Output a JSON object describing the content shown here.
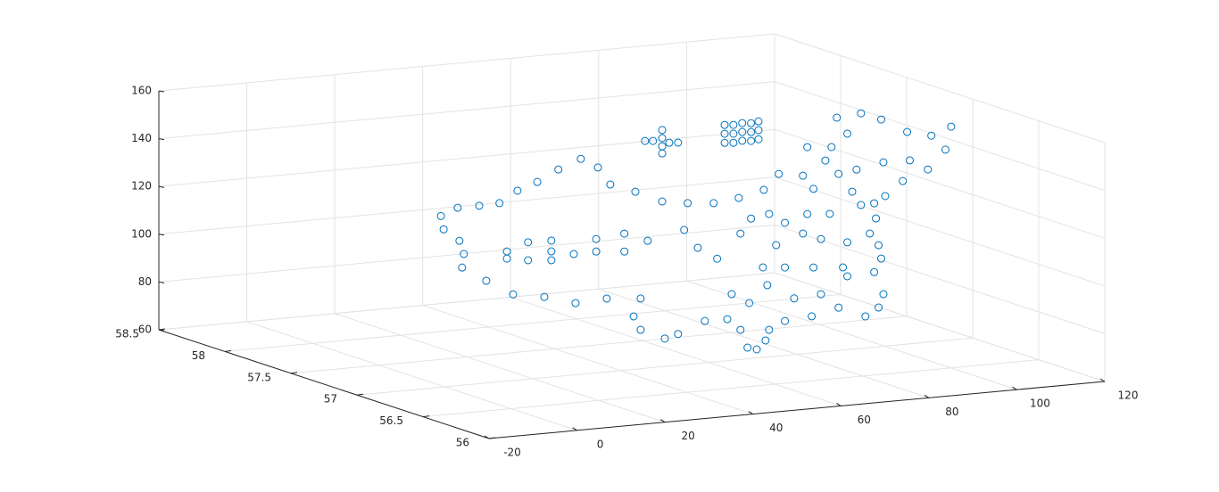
{
  "chart_data": {
    "type": "scatter3d",
    "color": "#0072bd",
    "grid": true,
    "xlim": [
      -20,
      120
    ],
    "ylim": [
      56,
      58.5
    ],
    "zlim": [
      60,
      160
    ],
    "xticks": [
      -20,
      0,
      20,
      40,
      60,
      80,
      100,
      120
    ],
    "yticks": [
      56,
      56.5,
      57,
      57.5,
      58,
      58.5
    ],
    "zticks": [
      60,
      80,
      100,
      120,
      140,
      160
    ],
    "series": [
      {
        "x": [
          -0.9,
          2.9,
          7.8,
          12.4,
          16.5,
          21.0,
          25.8,
          30.9,
          34.8,
          37.6,
          43.3,
          49.4,
          55.2,
          61.1,
          66.8,
          72.5,
          75.9,
          81.4,
          86.5,
          87.9,
          89.1,
          94.6,
          99.2,
          105.1,
          110.6,
          115.1,
          113.8,
          109.8,
          104.1,
          100.1,
          97.6,
          98.0,
          96.6,
          98.6,
          99.2,
          97.6,
          99.7,
          98.6,
          95.6,
          89.5,
          83.4,
          77.3,
          73.7,
          72.9,
          70.9,
          68.8,
          67.2,
          64.2,
          59.1,
          53.0,
          50.0,
          44.5,
          42.9,
          44.5,
          36.8,
          29.7,
          22.6,
          15.5,
          9.4,
          3.9,
          4.3,
          3.3,
          -0.3,
          14.1,
          14.1,
          18.9,
          18.9,
          24.2,
          24.2,
          24.2,
          29.3,
          34.4,
          34.4,
          40.8,
          40.8,
          46.1,
          54.4,
          57.5,
          61.9,
          67.2,
          69.6,
          72.3,
          75.3,
          81.4,
          85.5,
          91.5,
          90.5,
          83.8,
          77.3,
          73.3,
          65.2,
          69.2,
          79.4,
          85.5,
          91.5,
          87.5,
          92.6,
          94.6,
          82.4,
          77.3,
          73.7,
          83.8,
          89.5,
          93.6,
          99.7,
          105.7,
          91.5,
          82.4,
          45.5,
          47.3,
          49.4,
          49.4,
          49.4,
          49.4,
          51.0,
          53.0,
          63.6,
          63.6,
          63.6,
          65.6,
          65.6,
          65.6,
          67.6,
          67.6,
          67.6,
          69.6,
          69.6,
          69.6,
          71.3,
          71.3,
          71.3
        ],
        "y": [
          57,
          57,
          57,
          57,
          57,
          57,
          57,
          57,
          57,
          57,
          57,
          57,
          57,
          57,
          57,
          57,
          57,
          57,
          57,
          57,
          57,
          57,
          57,
          57,
          57,
          57,
          57,
          57,
          57,
          57,
          57,
          57,
          57,
          57,
          57,
          57,
          57,
          57,
          57,
          57,
          57,
          57,
          57,
          57,
          57,
          57,
          57,
          57,
          57,
          57,
          57,
          57,
          57,
          57,
          57,
          57,
          57,
          57,
          57,
          57,
          57,
          57,
          57,
          57,
          57,
          57,
          57,
          57,
          57,
          57,
          57,
          57,
          57,
          57,
          57,
          57,
          57,
          57,
          57,
          57,
          57,
          57,
          57,
          57,
          57,
          57,
          57,
          57,
          57,
          57,
          57,
          57,
          57,
          57,
          57,
          57,
          57,
          57,
          57,
          57,
          57,
          57,
          57,
          57,
          57,
          57,
          57,
          57,
          57,
          57,
          57,
          57,
          57,
          57,
          57,
          57,
          57,
          57,
          57,
          57,
          57,
          57,
          57,
          57,
          57,
          57,
          57,
          57,
          57,
          57,
          57
        ],
        "z": [
          131.7,
          134.5,
          134.5,
          134.8,
          139.3,
          142.2,
          146.6,
          150.2,
          145.9,
          138.3,
          134.3,
          129.2,
          127.5,
          126.5,
          127.7,
          130.1,
          136.2,
          134.5,
          140.0,
          145.4,
          157.5,
          158.4,
          155.0,
          148.8,
          146.3,
          149.3,
          139.9,
          132.3,
          128.4,
          122.8,
          120.2,
          113.8,
          107.7,
          102.5,
          96.8,
          91.4,
          81.8,
          76.4,
          73.2,
          77.9,
          75.3,
          74.4,
          71.3,
          67.0,
          63.6,
          64.7,
          72.4,
          77.4,
          77.5,
          73.1,
          71.7,
          76.3,
          82.2,
          89.4,
          90.7,
          90.0,
          93.8,
          96.1,
          102.8,
          109.3,
          114.9,
          120.6,
          126.0,
          114.3,
          111.3,
          117.3,
          109.8,
          117.1,
          112.6,
          108.9,
          110.6,
          116.0,
          110.8,
          117.2,
          109.7,
          113.3,
          116.4,
          108.4,
          103.1,
          112.7,
          118.6,
          97.7,
          106.5,
          110.3,
          107.3,
          104.9,
          94.6,
          95.7,
          96.8,
          90.1,
          87.7,
          83.3,
          83.5,
          84.2,
          90.7,
          117.5,
          125.9,
          120.0,
          118.3,
          115.5,
          119.8,
          128.6,
          133.9,
          135.0,
          137.0,
          136.8,
          150.4,
          146.3,
          155.2,
          154.9,
          159.1,
          155.7,
          152.3,
          149.3,
          153.5,
          153.2,
          158.8,
          155.1,
          151.3,
          158.5,
          154.8,
          151.0,
          158.9,
          155.2,
          151.5,
          158.5,
          154.8,
          151.1,
          159.0,
          155.3,
          151.5
        ]
      }
    ]
  }
}
